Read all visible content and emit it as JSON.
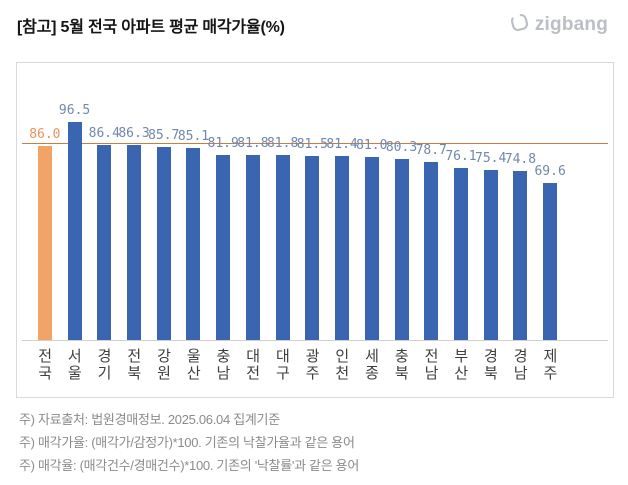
{
  "header": {
    "title": "[참고] 5월 전국 아파트 평균 매각가율(%)",
    "logo_text": "zigbang"
  },
  "chart_data": {
    "type": "bar",
    "title": "[참고] 5월 전국 아파트 평균 매각가율(%)",
    "categories": [
      "전국",
      "서울",
      "경기",
      "전북",
      "강원",
      "울산",
      "충남",
      "대전",
      "대구",
      "광주",
      "인천",
      "세종",
      "충북",
      "전남",
      "부산",
      "경북",
      "경남",
      "제주"
    ],
    "values": [
      86.0,
      96.5,
      86.4,
      86.3,
      85.7,
      85.1,
      81.9,
      81.8,
      81.8,
      81.5,
      81.4,
      81.0,
      80.3,
      78.7,
      76.1,
      75.4,
      74.8,
      69.6
    ],
    "highlight_index": 0,
    "reference_line": 86.0,
    "ylim": [
      0,
      123
    ],
    "grid": false,
    "legend": "none",
    "colors": {
      "bar": "#3a66b1",
      "highlight_bar": "#f2a366",
      "value_label": "#7188ae",
      "highlight_value_label": "#e8935a",
      "reference_line": "#c87e3e"
    }
  },
  "footnotes": [
    "주) 자료출처: 법원경매정보. 2025.06.04 집계기준",
    "주) 매각가율: (매각가/감정가)*100. 기존의 낙찰가율과 같은 용어",
    "주) 매각율: (매각건수/경매건수)*100. 기존의 '낙찰률'과 같은 용어"
  ]
}
